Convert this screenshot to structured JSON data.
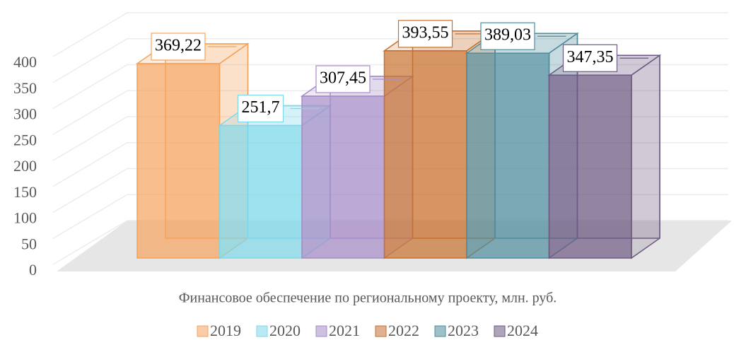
{
  "chart_data": {
    "type": "bar3d",
    "categories": [
      "Финансовое обеспечение по региональному проекту, млн. руб."
    ],
    "series": [
      {
        "name": "2019",
        "color": "#f5a35c",
        "values": [
          369.22
        ],
        "value_labels": [
          "369,22"
        ]
      },
      {
        "name": "2020",
        "color": "#7fd8ea",
        "values": [
          251.7
        ],
        "value_labels": [
          "251,7"
        ]
      },
      {
        "name": "2021",
        "color": "#a68cc8",
        "values": [
          307.45
        ],
        "value_labels": [
          "307,45"
        ]
      },
      {
        "name": "2022",
        "color": "#c8702e",
        "values": [
          393.55
        ],
        "value_labels": [
          "393,55"
        ]
      },
      {
        "name": "2023",
        "color": "#4f8d9c",
        "values": [
          389.03
        ],
        "value_labels": [
          "389,03"
        ]
      },
      {
        "name": "2024",
        "color": "#6e5a82",
        "values": [
          347.35
        ],
        "value_labels": [
          "347,35"
        ]
      }
    ],
    "ylim": [
      0,
      400
    ],
    "yticks": [
      0,
      50,
      100,
      150,
      200,
      250,
      300,
      350,
      400
    ],
    "grid": true,
    "legend": "bottom"
  }
}
